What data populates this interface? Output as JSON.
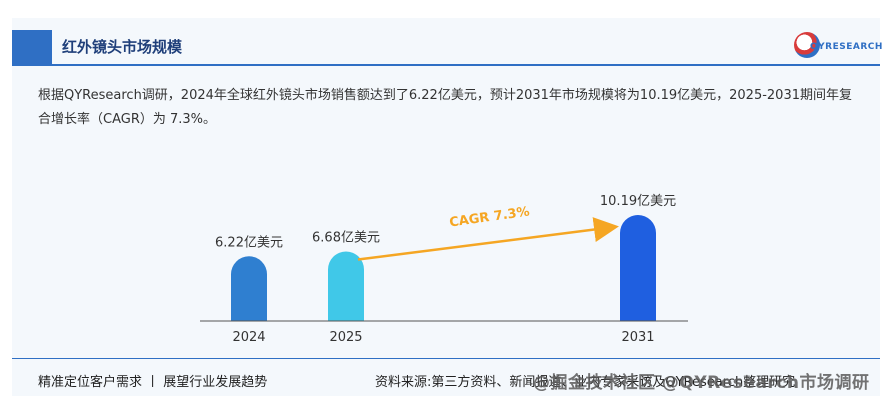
{
  "header": {
    "title": "红外镜头市场规模",
    "logo_text": "QYRESEARCH"
  },
  "description": "根据QYResearch调研，2024年全球红外镜头市场销售额达到了6.22亿美元，预计2031年市场规模将为10.19亿美元，2025-2031期间年复合增长率（CAGR）为 7.3%。",
  "cagr_label": "CAGR 7.3%",
  "footer": {
    "left": "精准定位客户需求 丨 展望行业发展趋势",
    "right": "资料来源:第三方资料、新闻报道、业内专家采访及QYResearch整理研究",
    "watermark": "@掘金技术社区 @QYResearch市场调研"
  },
  "colors": {
    "bar_2024": "#2f7fd0",
    "bar_2025": "#40c8e8",
    "bar_2031": "#1f5fe0",
    "arrow": "#f5a623",
    "accent": "#2f6fc4"
  },
  "chart_data": {
    "type": "bar",
    "categories": [
      "2024",
      "2025",
      "2031"
    ],
    "values": [
      6.22,
      6.68,
      10.19
    ],
    "value_labels": [
      "6.22亿美元",
      "6.68亿美元",
      "10.19亿美元"
    ],
    "title": "",
    "xlabel": "",
    "ylabel": "",
    "ylim": [
      0,
      11
    ],
    "grid": false
  }
}
